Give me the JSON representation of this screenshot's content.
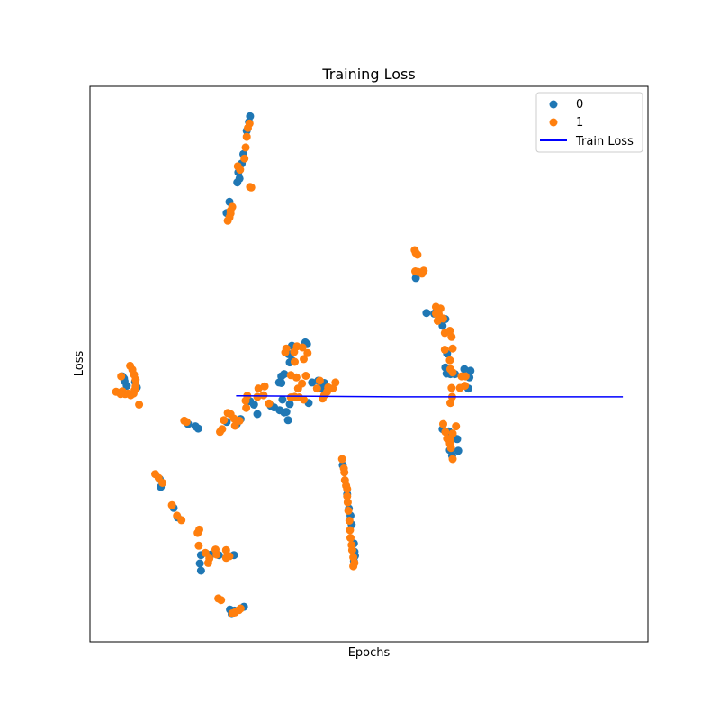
{
  "chart_data": {
    "type": "scatter",
    "title": "Training Loss",
    "xlabel": "Epochs",
    "ylabel": "Loss",
    "xlim": [
      0,
      1
    ],
    "ylim": [
      0,
      1
    ],
    "xticks": [],
    "yticks": [],
    "grid": false,
    "legend_position": "top-right",
    "series": [
      {
        "name": "0",
        "kind": "scatter",
        "color": "#1f77b4",
        "points": [
          [
            0.287,
            0.946
          ],
          [
            0.285,
            0.936
          ],
          [
            0.281,
            0.92
          ],
          [
            0.275,
            0.878
          ],
          [
            0.272,
            0.861
          ],
          [
            0.266,
            0.845
          ],
          [
            0.268,
            0.834
          ],
          [
            0.264,
            0.827
          ],
          [
            0.25,
            0.792
          ],
          [
            0.245,
            0.772
          ],
          [
            0.058,
            0.478
          ],
          [
            0.061,
            0.474
          ],
          [
            0.062,
            0.469
          ],
          [
            0.066,
            0.461
          ],
          [
            0.081,
            0.468
          ],
          [
            0.084,
            0.458
          ],
          [
            0.176,
            0.392
          ],
          [
            0.189,
            0.388
          ],
          [
            0.194,
            0.384
          ],
          [
            0.245,
            0.396
          ],
          [
            0.263,
            0.392
          ],
          [
            0.27,
            0.401
          ],
          [
            0.287,
            0.433
          ],
          [
            0.294,
            0.427
          ],
          [
            0.3,
            0.41
          ],
          [
            0.33,
            0.422
          ],
          [
            0.352,
            0.414
          ],
          [
            0.355,
            0.399
          ],
          [
            0.324,
            0.425
          ],
          [
            0.34,
            0.417
          ],
          [
            0.352,
            0.523
          ],
          [
            0.362,
            0.533
          ],
          [
            0.386,
            0.539
          ],
          [
            0.389,
            0.536
          ],
          [
            0.356,
            0.518
          ],
          [
            0.358,
            0.503
          ],
          [
            0.362,
            0.507
          ],
          [
            0.348,
            0.482
          ],
          [
            0.343,
            0.478
          ],
          [
            0.339,
            0.467
          ],
          [
            0.343,
            0.466
          ],
          [
            0.345,
            0.436
          ],
          [
            0.358,
            0.428
          ],
          [
            0.348,
            0.413
          ],
          [
            0.392,
            0.43
          ],
          [
            0.417,
            0.459
          ],
          [
            0.398,
            0.467
          ],
          [
            0.409,
            0.47
          ],
          [
            0.42,
            0.466
          ],
          [
            0.413,
            0.456
          ],
          [
            0.125,
            0.293
          ],
          [
            0.127,
            0.279
          ],
          [
            0.15,
            0.241
          ],
          [
            0.157,
            0.224
          ],
          [
            0.197,
            0.141
          ],
          [
            0.199,
            0.128
          ],
          [
            0.217,
            0.157
          ],
          [
            0.231,
            0.156
          ],
          [
            0.258,
            0.156
          ],
          [
            0.199,
            0.156
          ],
          [
            0.251,
            0.058
          ],
          [
            0.254,
            0.05
          ],
          [
            0.259,
            0.056
          ],
          [
            0.276,
            0.063
          ],
          [
            0.453,
            0.318
          ],
          [
            0.461,
            0.266
          ],
          [
            0.464,
            0.24
          ],
          [
            0.467,
            0.227
          ],
          [
            0.469,
            0.211
          ],
          [
            0.473,
            0.177
          ],
          [
            0.474,
            0.162
          ],
          [
            0.475,
            0.155
          ],
          [
            0.473,
            0.145
          ],
          [
            0.584,
            0.655
          ],
          [
            0.585,
            0.664
          ],
          [
            0.603,
            0.592
          ],
          [
            0.617,
            0.591
          ],
          [
            0.632,
            0.569
          ],
          [
            0.637,
            0.581
          ],
          [
            0.64,
            0.519
          ],
          [
            0.637,
            0.494
          ],
          [
            0.639,
            0.483
          ],
          [
            0.646,
            0.482
          ],
          [
            0.654,
            0.482
          ],
          [
            0.671,
            0.491
          ],
          [
            0.682,
            0.488
          ],
          [
            0.68,
            0.476
          ],
          [
            0.678,
            0.456
          ],
          [
            0.632,
            0.383
          ],
          [
            0.643,
            0.379
          ],
          [
            0.65,
            0.371
          ],
          [
            0.66,
            0.344
          ],
          [
            0.658,
            0.365
          ],
          [
            0.645,
            0.345
          ],
          [
            0.649,
            0.335
          ]
        ]
      },
      {
        "name": "1",
        "kind": "scatter",
        "color": "#ff7f0e",
        "points": [
          [
            0.286,
            0.933
          ],
          [
            0.283,
            0.925
          ],
          [
            0.281,
            0.909
          ],
          [
            0.279,
            0.89
          ],
          [
            0.277,
            0.87
          ],
          [
            0.265,
            0.856
          ],
          [
            0.269,
            0.85
          ],
          [
            0.287,
            0.819
          ],
          [
            0.289,
            0.818
          ],
          [
            0.255,
            0.783
          ],
          [
            0.252,
            0.771
          ],
          [
            0.25,
            0.764
          ],
          [
            0.247,
            0.758
          ],
          [
            0.252,
            0.776
          ],
          [
            0.056,
            0.478
          ],
          [
            0.058,
            0.451
          ],
          [
            0.063,
            0.446
          ],
          [
            0.068,
            0.447
          ],
          [
            0.073,
            0.444
          ],
          [
            0.078,
            0.447
          ],
          [
            0.08,
            0.453
          ],
          [
            0.082,
            0.46
          ],
          [
            0.082,
            0.472
          ],
          [
            0.079,
            0.481
          ],
          [
            0.076,
            0.49
          ],
          [
            0.072,
            0.497
          ],
          [
            0.047,
            0.45
          ],
          [
            0.055,
            0.446
          ],
          [
            0.088,
            0.427
          ],
          [
            0.169,
            0.398
          ],
          [
            0.173,
            0.396
          ],
          [
            0.233,
            0.378
          ],
          [
            0.237,
            0.383
          ],
          [
            0.24,
            0.399
          ],
          [
            0.247,
            0.412
          ],
          [
            0.252,
            0.41
          ],
          [
            0.26,
            0.389
          ],
          [
            0.258,
            0.402
          ],
          [
            0.268,
            0.398
          ],
          [
            0.28,
            0.421
          ],
          [
            0.279,
            0.434
          ],
          [
            0.282,
            0.443
          ],
          [
            0.3,
            0.441
          ],
          [
            0.311,
            0.444
          ],
          [
            0.302,
            0.456
          ],
          [
            0.313,
            0.46
          ],
          [
            0.321,
            0.429
          ],
          [
            0.35,
            0.521
          ],
          [
            0.352,
            0.528
          ],
          [
            0.366,
            0.522
          ],
          [
            0.371,
            0.532
          ],
          [
            0.381,
            0.53
          ],
          [
            0.39,
            0.52
          ],
          [
            0.367,
            0.504
          ],
          [
            0.383,
            0.509
          ],
          [
            0.36,
            0.48
          ],
          [
            0.37,
            0.476
          ],
          [
            0.387,
            0.479
          ],
          [
            0.38,
            0.465
          ],
          [
            0.373,
            0.456
          ],
          [
            0.367,
            0.441
          ],
          [
            0.36,
            0.44
          ],
          [
            0.375,
            0.44
          ],
          [
            0.383,
            0.436
          ],
          [
            0.407,
            0.456
          ],
          [
            0.417,
            0.438
          ],
          [
            0.42,
            0.444
          ],
          [
            0.425,
            0.45
          ],
          [
            0.427,
            0.458
          ],
          [
            0.435,
            0.456
          ],
          [
            0.44,
            0.467
          ],
          [
            0.412,
            0.47
          ],
          [
            0.117,
            0.302
          ],
          [
            0.123,
            0.295
          ],
          [
            0.13,
            0.286
          ],
          [
            0.147,
            0.246
          ],
          [
            0.156,
            0.227
          ],
          [
            0.164,
            0.219
          ],
          [
            0.193,
            0.196
          ],
          [
            0.196,
            0.202
          ],
          [
            0.195,
            0.173
          ],
          [
            0.207,
            0.16
          ],
          [
            0.214,
            0.15
          ],
          [
            0.212,
            0.142
          ],
          [
            0.244,
            0.151
          ],
          [
            0.244,
            0.165
          ],
          [
            0.227,
            0.157
          ],
          [
            0.25,
            0.154
          ],
          [
            0.225,
            0.166
          ],
          [
            0.23,
            0.078
          ],
          [
            0.235,
            0.075
          ],
          [
            0.255,
            0.051
          ],
          [
            0.26,
            0.053
          ],
          [
            0.267,
            0.057
          ],
          [
            0.27,
            0.06
          ],
          [
            0.452,
            0.329
          ],
          [
            0.455,
            0.312
          ],
          [
            0.456,
            0.305
          ],
          [
            0.457,
            0.291
          ],
          [
            0.459,
            0.281
          ],
          [
            0.461,
            0.275
          ],
          [
            0.461,
            0.262
          ],
          [
            0.462,
            0.251
          ],
          [
            0.463,
            0.236
          ],
          [
            0.465,
            0.218
          ],
          [
            0.466,
            0.201
          ],
          [
            0.467,
            0.187
          ],
          [
            0.469,
            0.174
          ],
          [
            0.47,
            0.165
          ],
          [
            0.472,
            0.152
          ],
          [
            0.474,
            0.142
          ],
          [
            0.472,
            0.136
          ],
          [
            0.582,
            0.705
          ],
          [
            0.584,
            0.7
          ],
          [
            0.587,
            0.697
          ],
          [
            0.583,
            0.667
          ],
          [
            0.588,
            0.666
          ],
          [
            0.595,
            0.663
          ],
          [
            0.598,
            0.668
          ],
          [
            0.62,
            0.603
          ],
          [
            0.628,
            0.6
          ],
          [
            0.625,
            0.59
          ],
          [
            0.633,
            0.582
          ],
          [
            0.636,
            0.556
          ],
          [
            0.623,
            0.578
          ],
          [
            0.62,
            0.591
          ],
          [
            0.645,
            0.56
          ],
          [
            0.648,
            0.549
          ],
          [
            0.636,
            0.526
          ],
          [
            0.65,
            0.528
          ],
          [
            0.645,
            0.507
          ],
          [
            0.646,
            0.491
          ],
          [
            0.65,
            0.485
          ],
          [
            0.666,
            0.478
          ],
          [
            0.673,
            0.478
          ],
          [
            0.663,
            0.457
          ],
          [
            0.672,
            0.461
          ],
          [
            0.649,
            0.441
          ],
          [
            0.648,
            0.457
          ],
          [
            0.646,
            0.43
          ],
          [
            0.633,
            0.392
          ],
          [
            0.637,
            0.378
          ],
          [
            0.64,
            0.366
          ],
          [
            0.645,
            0.357
          ],
          [
            0.647,
            0.349
          ],
          [
            0.646,
            0.364
          ],
          [
            0.656,
            0.388
          ],
          [
            0.65,
            0.375
          ],
          [
            0.65,
            0.329
          ]
        ]
      },
      {
        "name": "Train Loss",
        "kind": "line",
        "color": "#0000ff",
        "x": [
          0.262,
          0.4,
          0.55,
          0.7,
          0.85,
          0.955
        ],
        "y": [
          0.443,
          0.442,
          0.441,
          0.441,
          0.441,
          0.441
        ]
      }
    ]
  }
}
